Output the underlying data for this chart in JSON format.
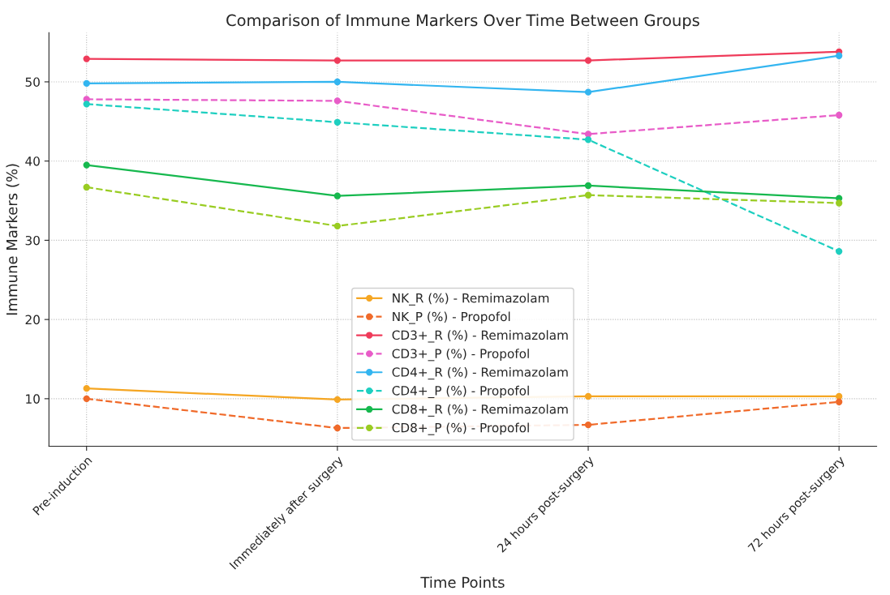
{
  "chart_data": {
    "type": "line",
    "title": "Comparison of Immune Markers Over Time Between Groups",
    "xlabel": "Time Points",
    "ylabel": "Immune Markers (%)",
    "categories": [
      "Pre-induction",
      "Immediately after surgery",
      "24 hours post-surgery",
      "72 hours post-surgery"
    ],
    "ylim": [
      4,
      56.2
    ],
    "yticks": [
      10,
      20,
      30,
      40,
      50
    ],
    "grid": true,
    "legend": "bottom",
    "marker": "circle",
    "series": [
      {
        "name": "NK_R (%) - Remimazolam",
        "color": "#f5a623",
        "line_style": "solid",
        "values": [
          11.3,
          9.9,
          10.3,
          10.3
        ]
      },
      {
        "name": "NK_P (%) - Propofol",
        "color": "#f06a2a",
        "line_style": "dashed",
        "values": [
          10.0,
          6.3,
          6.7,
          9.6
        ]
      },
      {
        "name": "CD3+_R (%) - Remimazolam",
        "color": "#ef3b5a",
        "line_style": "solid",
        "values": [
          52.9,
          52.7,
          52.7,
          53.8
        ]
      },
      {
        "name": "CD3+_P (%) - Propofol",
        "color": "#e85cc8",
        "line_style": "dashed",
        "values": [
          47.8,
          47.6,
          43.4,
          45.8
        ]
      },
      {
        "name": "CD4+_R (%) - Remimazolam",
        "color": "#33b5f0",
        "line_style": "solid",
        "values": [
          49.8,
          50.0,
          48.7,
          53.3
        ]
      },
      {
        "name": "CD4+_P (%) - Propofol",
        "color": "#1ecfc0",
        "line_style": "dashed",
        "values": [
          47.2,
          44.9,
          42.7,
          28.6
        ]
      },
      {
        "name": "CD8+_R (%) - Remimazolam",
        "color": "#16b84e",
        "line_style": "solid",
        "values": [
          39.5,
          35.6,
          36.9,
          35.3
        ]
      },
      {
        "name": "CD8+_P (%) - Propofol",
        "color": "#99cc22",
        "line_style": "dashed",
        "values": [
          36.7,
          31.8,
          35.7,
          34.7
        ]
      }
    ]
  }
}
